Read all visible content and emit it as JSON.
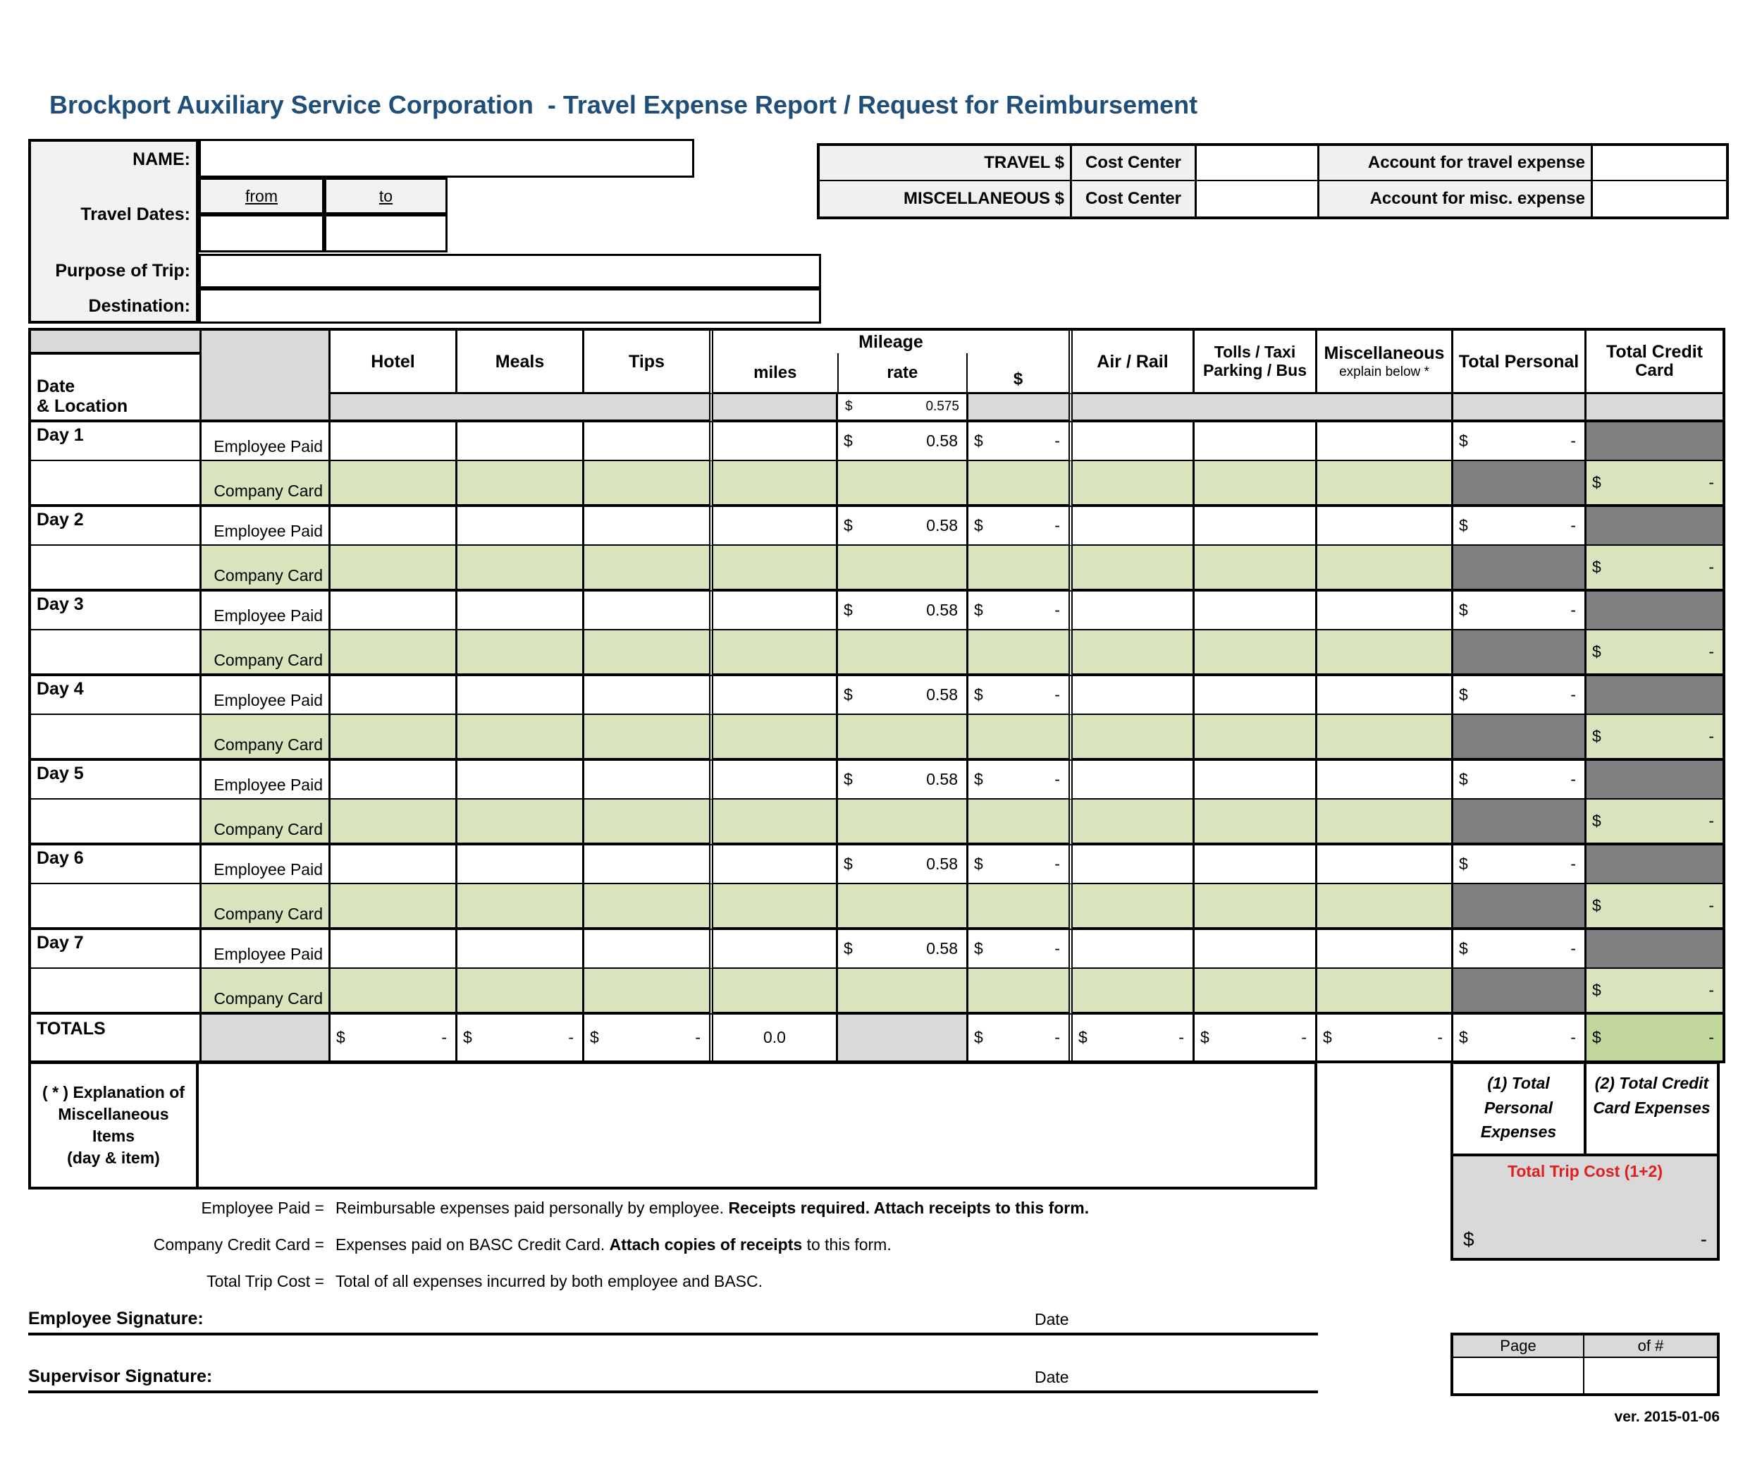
{
  "title": "Brockport Auxiliary Service Corporation  - Travel Expense Report / Request for Reimbursement",
  "colors": {
    "accent_blue": "#1F4E79",
    "light_green": "#D8E4BC",
    "totals_green": "#C3D69B",
    "dark_gray": "#808080",
    "light_gray": "#D9D9D9",
    "label_gray": "#F2F2F2",
    "red": "#E02020"
  },
  "trip_info": {
    "name_label": "NAME:",
    "name_value": "",
    "travel_dates_label": "Travel Dates:",
    "from_label": "from",
    "to_label": "to",
    "from_value": "",
    "to_value": "",
    "purpose_label": "Purpose of Trip:",
    "purpose_value": "",
    "destination_label": "Destination:",
    "destination_value": ""
  },
  "accounting": {
    "travel": {
      "amount_label": "TRAVEL $",
      "cost_center_label": "Cost Center",
      "cost_center_value": "",
      "account_label": "Account for travel expense",
      "account_value": ""
    },
    "misc": {
      "amount_label": "MISCELLANEOUS $",
      "cost_center_label": "Cost Center",
      "cost_center_value": "",
      "account_label": "Account for misc. expense",
      "account_value": ""
    }
  },
  "table": {
    "date_location_line1": "Date",
    "date_location_line2": "& Location",
    "columns": {
      "hotel": "Hotel",
      "meals": "Meals",
      "tips": "Tips",
      "mileage": "Mileage",
      "miles": "miles",
      "rate": "rate",
      "dollar": "$",
      "air_rail": "Air / Rail",
      "tolls_line1": "Tolls / Taxi",
      "tolls_line2": "Parking / Bus",
      "misc_line1": "Miscellaneous",
      "misc_line2": "explain below *",
      "total_personal": "Total Personal",
      "total_credit_line1": "Total Credit",
      "total_credit_line2": "Card"
    },
    "currency": "$",
    "dash": "-",
    "standard_rate": "0.575",
    "day_rate": "0.58",
    "employee_label": "Employee Paid",
    "company_label": "Company Card",
    "days": [
      "Day 1",
      "Day 2",
      "Day 3",
      "Day 4",
      "Day 5",
      "Day 6",
      "Day 7"
    ],
    "totals_label": "TOTALS",
    "totals_miles": "0.0"
  },
  "explanation": {
    "label_lines": [
      "( * ) Explanation of",
      "Miscellaneous",
      "Items",
      "(day & item)"
    ],
    "value": ""
  },
  "summary": {
    "personal_line1": "(1) Total",
    "personal_line2": "Personal",
    "personal_line3": "Expenses",
    "credit_line1": "(2) Total Credit",
    "credit_line2": "Card Expenses",
    "trip_cost_label": "Total Trip Cost (1+2)"
  },
  "legend": [
    {
      "label": "Employee Paid =",
      "segments": [
        {
          "text": "Reimbursable expenses paid personally by employee. ",
          "bold": false
        },
        {
          "text": "Receipts required. Attach receipts to this form.",
          "bold": true
        }
      ]
    },
    {
      "label": "Company Credit Card =",
      "segments": [
        {
          "text": "Expenses paid on BASC Credit Card. ",
          "bold": false
        },
        {
          "text": "Attach copies of receipts",
          "bold": true
        },
        {
          "text": " to this form.",
          "bold": false
        }
      ]
    },
    {
      "label": "Total Trip Cost =",
      "segments": [
        {
          "text": "Total of all expenses incurred by both employee and BASC.",
          "bold": false
        }
      ]
    }
  ],
  "signatures": {
    "employee_label": "Employee Signature:",
    "supervisor_label": "Supervisor Signature:",
    "date_label": "Date"
  },
  "footer": {
    "page_label": "Page",
    "of_label": "of #",
    "page_value": "",
    "of_value": "",
    "version": "ver. 2015-01-06"
  }
}
